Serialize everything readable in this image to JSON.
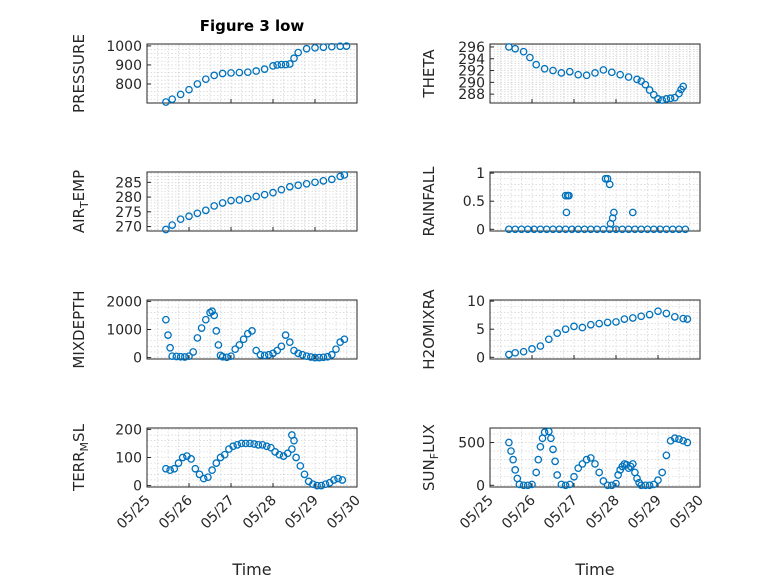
{
  "figure": {
    "marker_color": "#0072BD",
    "title": "Figure 3 low",
    "xlabel": "Time"
  },
  "chart_data": [
    {
      "type": "scatter",
      "id": "pressure",
      "title": "Figure 3 low",
      "ylabel": "PRESSURE",
      "ylabel_sub": "",
      "xlim": [
        0,
        5
      ],
      "ylim": [
        700,
        1010
      ],
      "yticks": [
        800,
        900,
        1000
      ],
      "x": [
        0.45,
        0.6,
        0.8,
        1.0,
        1.2,
        1.4,
        1.6,
        1.8,
        2.0,
        2.2,
        2.4,
        2.6,
        2.8,
        3.0,
        3.1,
        3.2,
        3.3,
        3.4,
        3.5,
        3.6,
        3.8,
        4.0,
        4.2,
        4.4,
        4.6,
        4.75
      ],
      "y": [
        705,
        720,
        745,
        770,
        800,
        825,
        845,
        855,
        858,
        860,
        862,
        868,
        878,
        895,
        900,
        902,
        902,
        905,
        935,
        965,
        985,
        990,
        993,
        996,
        998,
        999
      ]
    },
    {
      "type": "scatter",
      "id": "theta",
      "title": "",
      "ylabel": "THETA",
      "ylabel_sub": "",
      "xlim": [
        0,
        5
      ],
      "ylim": [
        286.5,
        296.5
      ],
      "yticks": [
        288,
        290,
        292,
        294,
        296
      ],
      "x": [
        0.45,
        0.6,
        0.8,
        0.95,
        1.1,
        1.3,
        1.5,
        1.7,
        1.9,
        2.1,
        2.3,
        2.5,
        2.7,
        2.9,
        3.1,
        3.3,
        3.5,
        3.6,
        3.7,
        3.8,
        3.9,
        4.0,
        4.1,
        4.2,
        4.3,
        4.4,
        4.5,
        4.55,
        4.6
      ],
      "y": [
        296,
        295.7,
        295.2,
        294.2,
        293,
        292.3,
        292,
        291.6,
        291.8,
        291.3,
        291.2,
        291.6,
        292.1,
        291.7,
        291.3,
        290.9,
        290.5,
        290.2,
        289.6,
        288.7,
        287.9,
        287.2,
        287,
        287.2,
        287.3,
        287.4,
        288.1,
        288.8,
        289.3
      ]
    },
    {
      "type": "scatter",
      "id": "air_temp",
      "title": "",
      "ylabel": "AIR",
      "ylabel_sub": "T",
      "ylabel_suffix": "EMP",
      "xlim": [
        0,
        5
      ],
      "ylim": [
        268.5,
        288.5
      ],
      "yticks": [
        270,
        275,
        280,
        285
      ],
      "x": [
        0.45,
        0.6,
        0.8,
        1.0,
        1.2,
        1.4,
        1.6,
        1.8,
        2.0,
        2.2,
        2.4,
        2.6,
        2.8,
        3.0,
        3.2,
        3.4,
        3.6,
        3.8,
        4.0,
        4.2,
        4.4,
        4.6,
        4.7
      ],
      "y": [
        269,
        270.5,
        272.5,
        273.5,
        274.5,
        275.5,
        277,
        278,
        278.8,
        279,
        279.5,
        280.2,
        280.8,
        281.5,
        282.5,
        283.5,
        284,
        284.5,
        285,
        285.5,
        286,
        287,
        287.5
      ]
    },
    {
      "type": "scatter",
      "id": "rainfall",
      "title": "",
      "ylabel": "RAINFALL",
      "ylabel_sub": "",
      "xlim": [
        0,
        5
      ],
      "ylim": [
        -0.03,
        1.02
      ],
      "yticks": [
        0,
        0.5,
        1
      ],
      "x": [
        0.45,
        0.6,
        0.75,
        0.9,
        1.05,
        1.2,
        1.35,
        1.5,
        1.65,
        1.8,
        1.95,
        2.1,
        2.25,
        2.4,
        2.55,
        2.7,
        2.85,
        3.0,
        3.15,
        3.3,
        3.45,
        3.6,
        3.75,
        3.9,
        4.05,
        4.2,
        4.35,
        4.5,
        4.65,
        1.82,
        1.85,
        1.88,
        1.8,
        2.75,
        2.8,
        2.85,
        2.87,
        2.92,
        2.95,
        3.4
      ],
      "y": [
        0,
        0,
        0,
        0,
        0,
        0,
        0,
        0,
        0,
        0,
        0,
        0,
        0,
        0,
        0,
        0,
        0,
        0,
        0,
        0,
        0,
        0,
        0,
        0,
        0,
        0,
        0,
        0,
        0,
        0.3,
        0.6,
        0.6,
        0.6,
        0.9,
        0.9,
        0.8,
        0.1,
        0.2,
        0.3,
        0.3
      ]
    },
    {
      "type": "scatter",
      "id": "mixdepth",
      "title": "",
      "ylabel": "MIXDEPTH",
      "ylabel_sub": "",
      "xlim": [
        0,
        5
      ],
      "ylim": [
        -50,
        2050
      ],
      "yticks": [
        0,
        1000,
        2000
      ],
      "x": [
        0.45,
        0.5,
        0.55,
        0.6,
        0.7,
        0.8,
        0.9,
        1.0,
        1.1,
        1.2,
        1.3,
        1.4,
        1.5,
        1.55,
        1.6,
        1.65,
        1.7,
        1.75,
        1.8,
        1.9,
        2.0,
        2.1,
        2.2,
        2.3,
        2.4,
        2.5,
        2.6,
        2.7,
        2.8,
        2.9,
        3.0,
        3.1,
        3.2,
        3.3,
        3.4,
        3.5,
        3.6,
        3.7,
        3.8,
        3.9,
        4.0,
        4.1,
        4.2,
        4.3,
        4.4,
        4.5,
        4.6,
        4.7
      ],
      "y": [
        1350,
        800,
        350,
        50,
        40,
        30,
        20,
        50,
        200,
        700,
        1050,
        1350,
        1600,
        1650,
        1500,
        950,
        450,
        80,
        30,
        10,
        50,
        300,
        450,
        650,
        850,
        950,
        250,
        100,
        80,
        100,
        150,
        250,
        400,
        800,
        550,
        250,
        150,
        100,
        50,
        20,
        0,
        0,
        10,
        30,
        100,
        300,
        550,
        650
      ]
    },
    {
      "type": "scatter",
      "id": "h2omixra",
      "title": "",
      "ylabel": "H2OMIXRA",
      "ylabel_sub": "",
      "xlim": [
        0,
        5
      ],
      "ylim": [
        -0.3,
        10.2
      ],
      "yticks": [
        0,
        5,
        10
      ],
      "x": [
        0.45,
        0.6,
        0.8,
        1.0,
        1.2,
        1.4,
        1.6,
        1.8,
        2.0,
        2.2,
        2.4,
        2.6,
        2.8,
        3.0,
        3.2,
        3.4,
        3.6,
        3.8,
        4.0,
        4.2,
        4.4,
        4.6,
        4.7
      ],
      "y": [
        0.5,
        0.8,
        1.0,
        1.5,
        2.0,
        3.2,
        4.3,
        5.0,
        5.5,
        5.3,
        5.8,
        6.0,
        6.2,
        6.3,
        6.8,
        7.0,
        7.3,
        7.6,
        8.2,
        7.8,
        7.2,
        6.9,
        6.8
      ]
    },
    {
      "type": "scatter",
      "id": "terr_msl",
      "title": "",
      "ylabel": "TERR",
      "ylabel_sub": "M",
      "ylabel_suffix": "SL",
      "xlim": [
        0,
        5
      ],
      "ylim": [
        -5,
        205
      ],
      "yticks": [
        0,
        100,
        200
      ],
      "x": [
        0.45,
        0.55,
        0.65,
        0.75,
        0.85,
        0.95,
        1.05,
        1.15,
        1.25,
        1.35,
        1.45,
        1.55,
        1.65,
        1.75,
        1.85,
        1.95,
        2.05,
        2.15,
        2.25,
        2.35,
        2.45,
        2.55,
        2.65,
        2.75,
        2.85,
        2.95,
        3.05,
        3.15,
        3.25,
        3.35,
        3.45,
        3.55,
        3.65,
        3.75,
        3.85,
        3.95,
        4.05,
        4.15,
        4.25,
        4.35,
        4.45,
        4.55,
        4.65,
        3.45,
        3.5
      ],
      "y": [
        60,
        55,
        60,
        80,
        100,
        105,
        95,
        60,
        40,
        25,
        30,
        55,
        80,
        100,
        110,
        130,
        140,
        145,
        150,
        150,
        150,
        148,
        145,
        145,
        140,
        135,
        120,
        110,
        105,
        115,
        130,
        100,
        70,
        40,
        15,
        5,
        0,
        0,
        5,
        10,
        20,
        25,
        20,
        180,
        160
      ]
    },
    {
      "type": "scatter",
      "id": "sun_flux",
      "title": "",
      "ylabel": "SUN",
      "ylabel_sub": "F",
      "ylabel_suffix": "LUX",
      "xlim": [
        0,
        5
      ],
      "ylim": [
        -20,
        670
      ],
      "yticks": [
        0,
        500
      ],
      "x": [
        0.45,
        0.5,
        0.55,
        0.6,
        0.65,
        0.7,
        0.8,
        0.9,
        1.0,
        1.1,
        1.15,
        1.2,
        1.25,
        1.3,
        1.4,
        1.45,
        1.5,
        1.55,
        1.6,
        1.7,
        1.8,
        1.9,
        2.0,
        2.1,
        2.2,
        2.3,
        2.4,
        2.5,
        2.6,
        2.7,
        2.8,
        2.9,
        3.0,
        3.05,
        3.1,
        3.15,
        3.2,
        3.25,
        3.3,
        3.35,
        3.4,
        3.45,
        3.5,
        3.55,
        3.6,
        3.7,
        3.8,
        3.9,
        4.0,
        4.1,
        4.2,
        4.3,
        4.4,
        4.5,
        4.6,
        4.7
      ],
      "y": [
        500,
        400,
        300,
        180,
        80,
        10,
        0,
        0,
        10,
        150,
        300,
        450,
        550,
        620,
        630,
        550,
        420,
        280,
        120,
        10,
        0,
        10,
        100,
        200,
        250,
        300,
        320,
        250,
        150,
        50,
        0,
        0,
        20,
        120,
        180,
        220,
        250,
        240,
        200,
        220,
        250,
        150,
        80,
        30,
        0,
        0,
        0,
        10,
        60,
        150,
        350,
        520,
        550,
        540,
        520,
        500
      ]
    }
  ],
  "xaxis": {
    "ticks": [
      "05/25",
      "05/26",
      "05/27",
      "05/28",
      "05/29",
      "05/30"
    ]
  }
}
